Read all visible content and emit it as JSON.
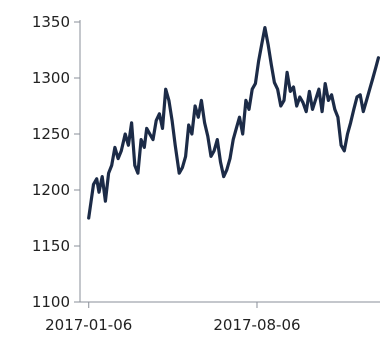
{
  "chart_data": {
    "type": "line",
    "title": "",
    "xlabel": "",
    "ylabel": "",
    "ylim": [
      1100,
      1350
    ],
    "yticks": [
      1100,
      1150,
      1200,
      1250,
      1300,
      1350
    ],
    "xlim": [
      "2016-12-26",
      "2018-01-08"
    ],
    "xticks": [
      "2017-01-06",
      "2017-08-06"
    ],
    "grid": false,
    "legend": "none",
    "colors": {
      "line": "#1c2b47",
      "axis": "#8a8f99",
      "text": "#222222"
    },
    "series": [
      {
        "x": [
          "2017-01-06",
          "2017-01-09",
          "2017-01-12",
          "2017-01-16",
          "2017-01-19",
          "2017-01-23",
          "2017-01-27",
          "2017-01-31",
          "2017-02-04",
          "2017-02-08",
          "2017-02-12",
          "2017-02-16",
          "2017-02-21",
          "2017-02-25",
          "2017-03-01",
          "2017-03-05",
          "2017-03-09",
          "2017-03-13",
          "2017-03-17",
          "2017-03-20",
          "2017-03-24",
          "2017-03-28",
          "2017-04-01",
          "2017-04-05",
          "2017-04-09",
          "2017-04-13",
          "2017-04-17",
          "2017-04-21",
          "2017-04-25",
          "2017-04-30",
          "2017-05-04",
          "2017-05-08",
          "2017-05-12",
          "2017-05-16",
          "2017-05-20",
          "2017-05-24",
          "2017-05-28",
          "2017-06-01",
          "2017-06-05",
          "2017-06-09",
          "2017-06-13",
          "2017-06-17",
          "2017-06-21",
          "2017-06-25",
          "2017-06-29",
          "2017-07-03",
          "2017-07-07",
          "2017-07-11",
          "2017-07-15",
          "2017-07-19",
          "2017-07-23",
          "2017-07-27",
          "2017-07-31",
          "2017-08-04",
          "2017-08-08",
          "2017-08-12",
          "2017-08-16",
          "2017-08-20",
          "2017-08-24",
          "2017-08-28",
          "2017-09-01",
          "2017-09-05",
          "2017-09-09",
          "2017-09-13",
          "2017-09-17",
          "2017-09-21",
          "2017-09-25",
          "2017-09-29",
          "2017-10-03",
          "2017-10-07",
          "2017-10-11",
          "2017-10-15",
          "2017-10-19",
          "2017-10-23",
          "2017-10-27",
          "2017-10-31",
          "2017-11-04",
          "2017-11-08",
          "2017-11-12",
          "2017-11-16",
          "2017-11-20",
          "2017-11-24",
          "2017-11-28",
          "2017-12-02",
          "2017-12-06",
          "2017-12-10",
          "2017-12-14",
          "2017-12-18",
          "2017-12-22",
          "2017-12-26",
          "2017-12-30",
          "2018-01-03",
          "2018-01-06"
        ],
        "values": [
          1175,
          1190,
          1205,
          1210,
          1198,
          1212,
          1190,
          1215,
          1222,
          1238,
          1228,
          1235,
          1250,
          1240,
          1260,
          1222,
          1215,
          1245,
          1238,
          1255,
          1250,
          1245,
          1262,
          1268,
          1255,
          1290,
          1280,
          1262,
          1240,
          1215,
          1220,
          1230,
          1258,
          1250,
          1275,
          1265,
          1280,
          1260,
          1248,
          1230,
          1235,
          1245,
          1225,
          1212,
          1218,
          1228,
          1245,
          1255,
          1265,
          1250,
          1280,
          1272,
          1290,
          1295,
          1315,
          1330,
          1345,
          1330,
          1312,
          1296,
          1290,
          1275,
          1280,
          1305,
          1288,
          1292,
          1275,
          1283,
          1278,
          1270,
          1288,
          1272,
          1281,
          1290,
          1270,
          1295,
          1280,
          1285,
          1272,
          1265,
          1240,
          1235,
          1250,
          1260,
          1272,
          1283,
          1285,
          1270,
          1280,
          1290,
          1300,
          1310,
          1318
        ]
      }
    ]
  }
}
